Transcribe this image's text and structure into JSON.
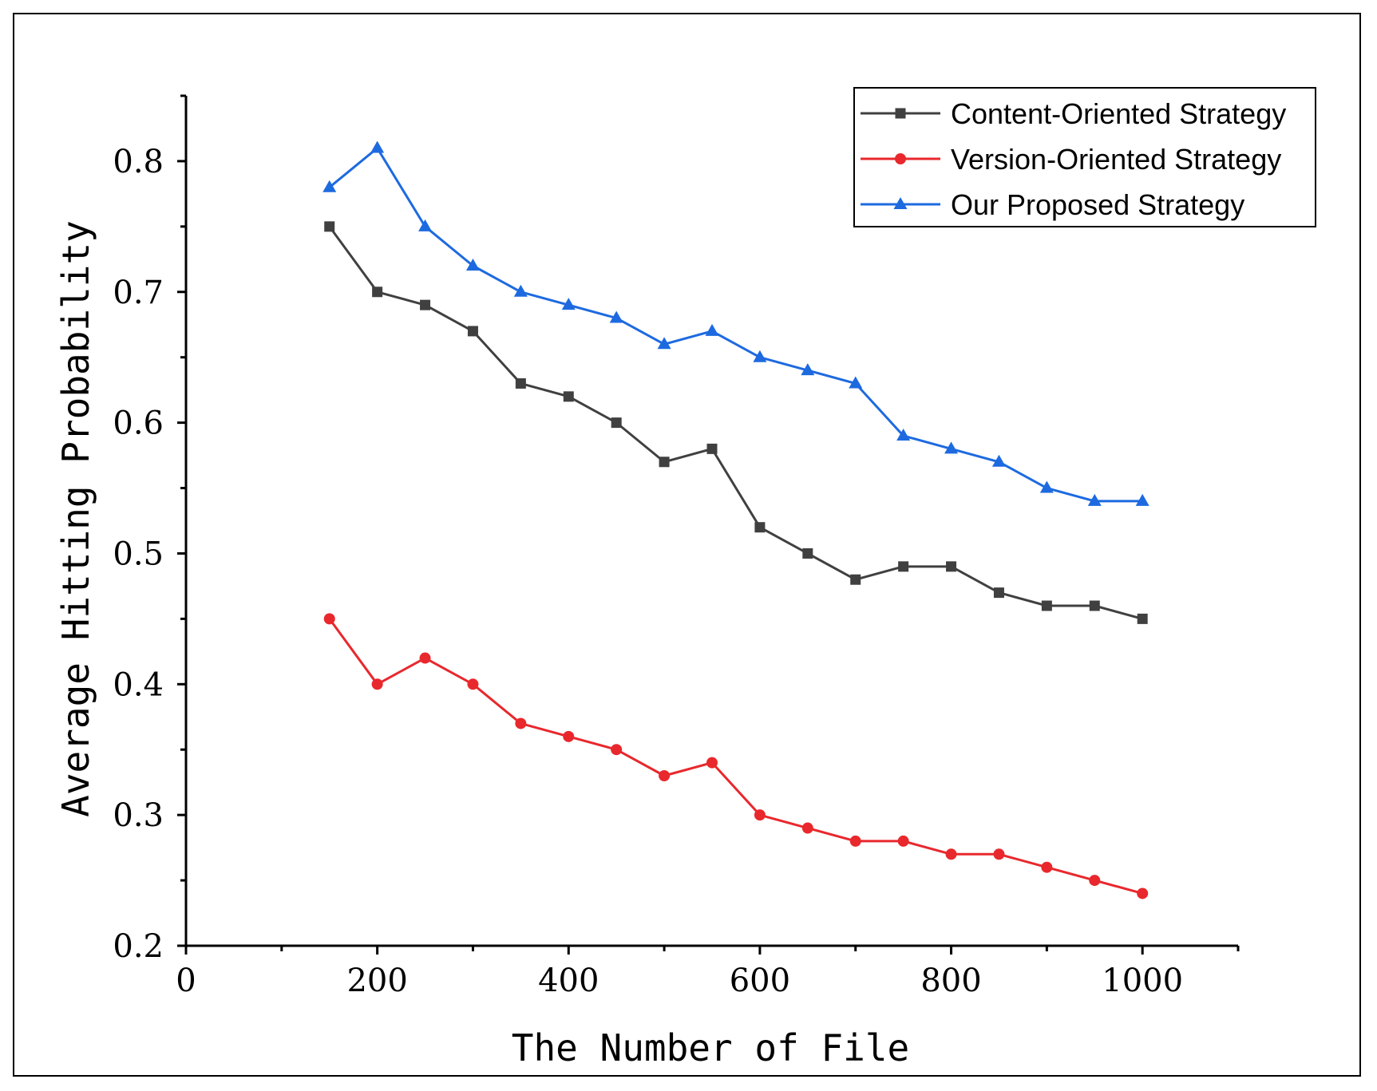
{
  "chart_data": {
    "type": "line",
    "title": "",
    "xlabel": "The Number of File",
    "ylabel": "Average Hitting Probability",
    "xlim": [
      0,
      1100
    ],
    "ylim": [
      0.2,
      0.85
    ],
    "xticks": [
      0,
      200,
      400,
      600,
      800,
      1000
    ],
    "xtick_labels": [
      "0",
      "200",
      "400",
      "600",
      "800",
      "1000"
    ],
    "yticks": [
      0.2,
      0.3,
      0.4,
      0.5,
      0.6,
      0.7,
      0.8
    ],
    "ytick_labels": [
      "0.2",
      "0.3",
      "0.4",
      "0.5",
      "0.6",
      "0.7",
      "0.8"
    ],
    "grid": false,
    "legend_position": "top-right",
    "x": [
      150,
      200,
      250,
      300,
      350,
      400,
      450,
      500,
      550,
      600,
      650,
      700,
      750,
      800,
      850,
      900,
      950,
      1000
    ],
    "series": [
      {
        "name": "Content-Oriented Strategy",
        "color": "#404040",
        "marker": "square",
        "values": [
          0.75,
          0.7,
          0.69,
          0.67,
          0.63,
          0.62,
          0.6,
          0.57,
          0.58,
          0.52,
          0.5,
          0.48,
          0.49,
          0.49,
          0.47,
          0.46,
          0.46,
          0.45
        ]
      },
      {
        "name": "Version-Oriented Strategy",
        "color": "#e8282d",
        "marker": "circle",
        "values": [
          0.45,
          0.4,
          0.42,
          0.4,
          0.37,
          0.36,
          0.35,
          0.33,
          0.34,
          0.3,
          0.29,
          0.28,
          0.28,
          0.27,
          0.27,
          0.26,
          0.25,
          0.24
        ]
      },
      {
        "name": "Our Proposed Strategy",
        "color": "#1d6ae0",
        "marker": "triangle",
        "values": [
          0.78,
          0.81,
          0.75,
          0.72,
          0.7,
          0.69,
          0.68,
          0.66,
          0.67,
          0.65,
          0.64,
          0.63,
          0.59,
          0.58,
          0.57,
          0.55,
          0.54,
          0.54
        ]
      }
    ]
  }
}
